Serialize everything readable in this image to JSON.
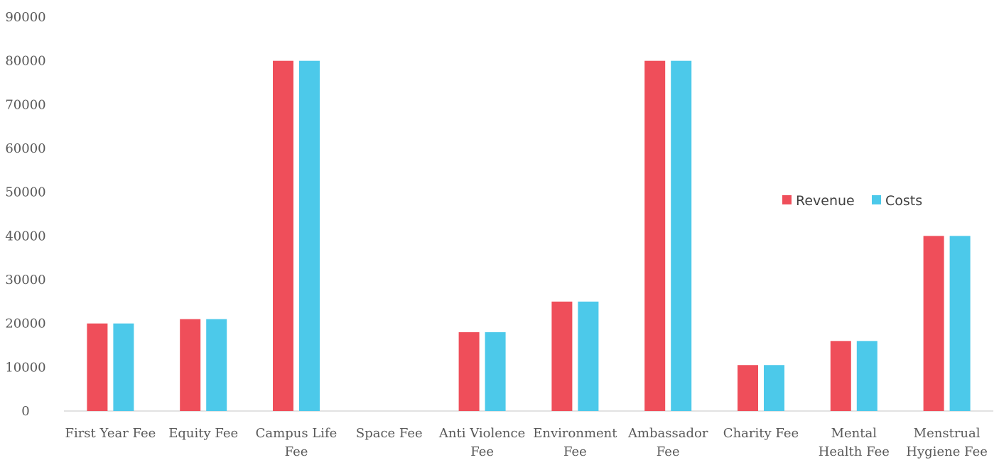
{
  "chart_data": {
    "type": "bar",
    "title": "",
    "xlabel": "",
    "ylabel": "",
    "ylim": [
      0,
      90000
    ],
    "yticks": [
      0,
      10000,
      20000,
      30000,
      40000,
      50000,
      60000,
      70000,
      80000,
      90000
    ],
    "grid": false,
    "legend_position": "right",
    "categories": [
      [
        "First Year Fee"
      ],
      [
        "Equity Fee"
      ],
      [
        "Campus Life",
        "Fee"
      ],
      [
        "Space Fee"
      ],
      [
        "Anti Violence",
        "Fee"
      ],
      [
        "Environment",
        "Fee"
      ],
      [
        "Ambassador",
        "Fee"
      ],
      [
        "Charity Fee"
      ],
      [
        "Mental",
        "Health Fee"
      ],
      [
        "Menstrual",
        "Hygiene Fee"
      ]
    ],
    "series": [
      {
        "name": "Revenue",
        "color": "#ef4e5a",
        "values": [
          20000,
          21000,
          80000,
          0,
          18000,
          25000,
          80000,
          10500,
          16000,
          40000
        ]
      },
      {
        "name": "Costs",
        "color": "#4cc9ea",
        "values": [
          20000,
          21000,
          80000,
          0,
          18000,
          25000,
          80000,
          10500,
          16000,
          40000
        ]
      }
    ]
  }
}
